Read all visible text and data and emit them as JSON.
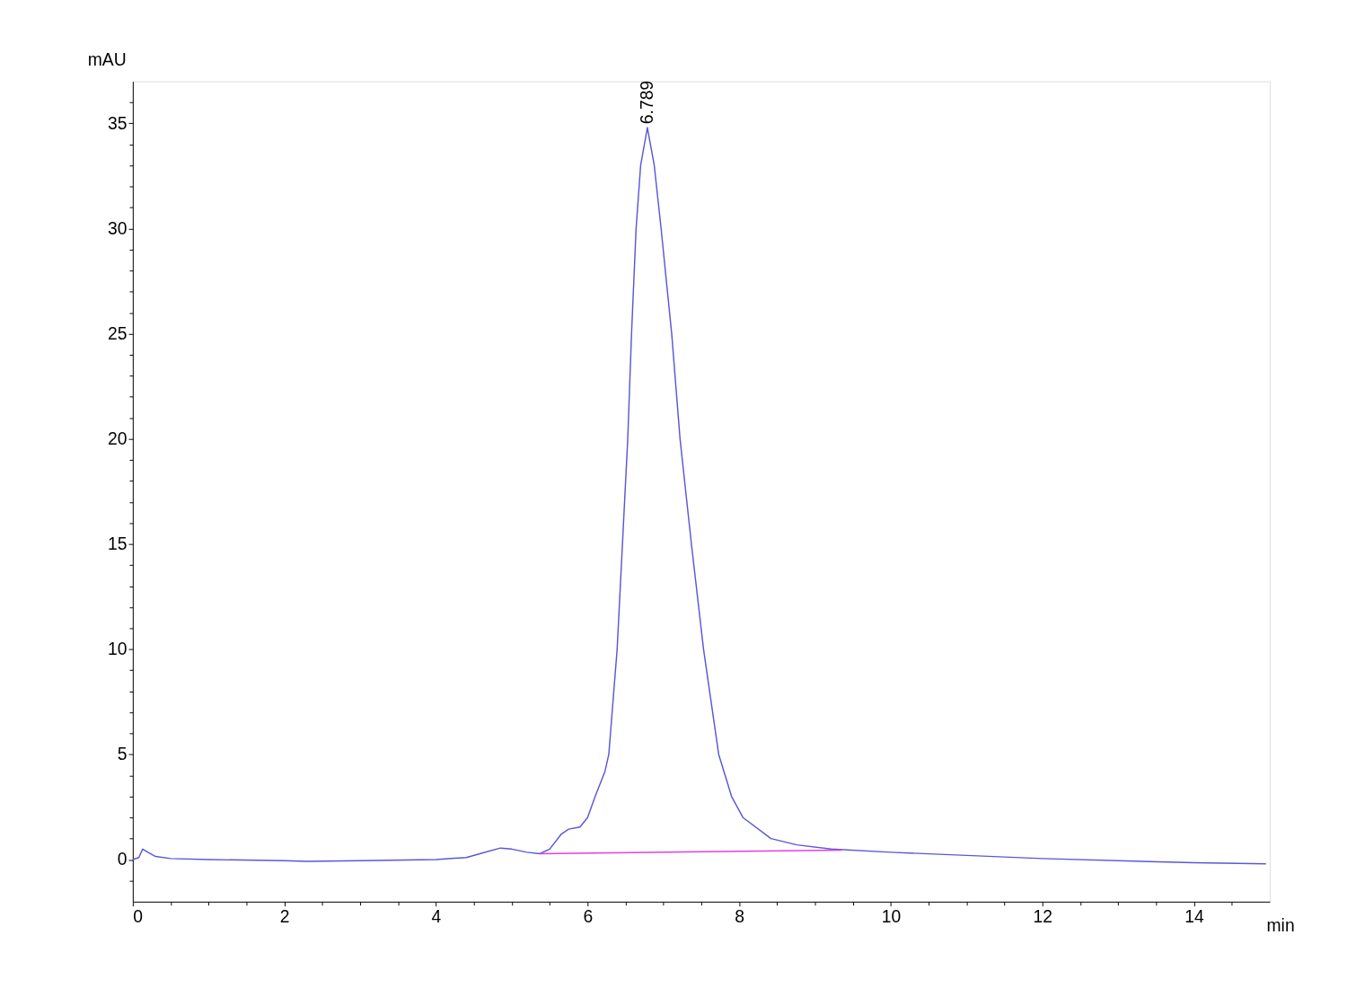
{
  "chart_data": {
    "type": "line",
    "xlabel": "min",
    "ylabel": "mAU",
    "xlim": [
      0,
      15
    ],
    "ylim": [
      -2,
      37
    ],
    "xticks": [
      0,
      {
        "value": 0.5,
        "label": null
      },
      {
        "value": 1,
        "label": null
      },
      {
        "value": 1.5,
        "label": null
      },
      2,
      {
        "value": 2.5,
        "label": null
      },
      {
        "value": 3,
        "label": null
      },
      {
        "value": 3.5,
        "label": null
      },
      4,
      {
        "value": 4.5,
        "label": null
      },
      {
        "value": 5,
        "label": null
      },
      {
        "value": 5.5,
        "label": null
      },
      6,
      {
        "value": 6.5,
        "label": null
      },
      {
        "value": 7,
        "label": null
      },
      {
        "value": 7.5,
        "label": null
      },
      8,
      {
        "value": 8.5,
        "label": null
      },
      {
        "value": 9,
        "label": null
      },
      {
        "value": 9.5,
        "label": null
      },
      10,
      {
        "value": 10.5,
        "label": null
      },
      {
        "value": 11,
        "label": null
      },
      {
        "value": 11.5,
        "label": null
      },
      12,
      {
        "value": 12.5,
        "label": null
      },
      {
        "value": 13,
        "label": null
      },
      {
        "value": 13.5,
        "label": null
      },
      14,
      {
        "value": 14.5,
        "label": null
      }
    ],
    "yticks": [
      {
        "value": -1,
        "label": null
      },
      0,
      {
        "value": 1,
        "label": null
      },
      {
        "value": 2,
        "label": null
      },
      {
        "value": 3,
        "label": null
      },
      {
        "value": 4,
        "label": null
      },
      5,
      {
        "value": 6,
        "label": null
      },
      {
        "value": 7,
        "label": null
      },
      {
        "value": 8,
        "label": null
      },
      {
        "value": 9,
        "label": null
      },
      10,
      {
        "value": 11,
        "label": null
      },
      {
        "value": 12,
        "label": null
      },
      {
        "value": 13,
        "label": null
      },
      {
        "value": 14,
        "label": null
      },
      15,
      {
        "value": 16,
        "label": null
      },
      {
        "value": 17,
        "label": null
      },
      {
        "value": 18,
        "label": null
      },
      {
        "value": 19,
        "label": null
      },
      20,
      {
        "value": 21,
        "label": null
      },
      {
        "value": 22,
        "label": null
      },
      {
        "value": 23,
        "label": null
      },
      {
        "value": 24,
        "label": null
      },
      25,
      {
        "value": 26,
        "label": null
      },
      {
        "value": 27,
        "label": null
      },
      {
        "value": 28,
        "label": null
      },
      {
        "value": 29,
        "label": null
      },
      30,
      {
        "value": 31,
        "label": null
      },
      {
        "value": 32,
        "label": null
      },
      {
        "value": 33,
        "label": null
      },
      {
        "value": 34,
        "label": null
      },
      35,
      {
        "value": 36,
        "label": null
      }
    ],
    "grid": false,
    "marker": "none",
    "line_style": "solid",
    "series": [
      {
        "color": "#5858d8",
        "x": [
          0,
          0.08,
          0.13,
          0.2,
          0.3,
          0.5,
          1.0,
          2.0,
          2.3,
          3.0,
          4.0,
          4.4,
          4.6,
          4.85,
          5.0,
          5.2,
          5.37,
          5.5,
          5.65,
          5.75,
          5.9,
          6.0,
          6.1,
          6.23,
          6.28,
          6.39,
          6.46,
          6.53,
          6.58,
          6.64,
          6.7,
          6.789,
          6.88,
          6.97,
          7.11,
          7.22,
          7.37,
          7.53,
          7.73,
          7.9,
          8.05,
          8.42,
          8.76,
          9.21,
          10,
          12,
          14,
          14.95
        ],
        "values": [
          0,
          0.1,
          0.5,
          0.35,
          0.15,
          0.05,
          0,
          -0.05,
          -0.08,
          -0.05,
          0,
          0.1,
          0.3,
          0.55,
          0.5,
          0.35,
          0.28,
          0.5,
          1.2,
          1.45,
          1.55,
          2.0,
          3.0,
          4.2,
          5,
          10,
          15,
          20,
          25,
          30,
          33,
          34.8,
          33,
          30,
          25,
          20,
          15,
          10,
          5,
          3,
          2,
          1,
          0.7,
          0.5,
          0.35,
          0.05,
          -0.15,
          -0.2
        ]
      },
      {
        "color": "#e040e0",
        "x": [
          5.37,
          9.35
        ],
        "values": [
          0.28,
          0.45
        ]
      }
    ],
    "annotations": [
      {
        "text": "6.789",
        "x": 6.789,
        "y": 34.8
      }
    ]
  }
}
